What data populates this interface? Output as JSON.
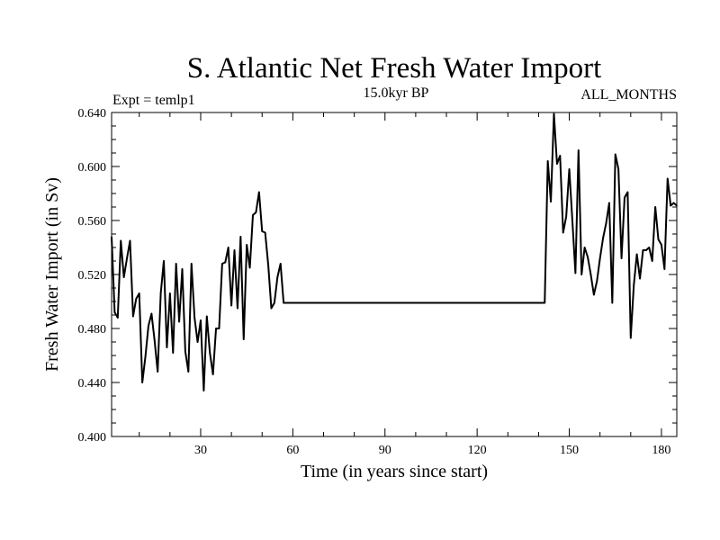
{
  "chart_data": {
    "type": "line",
    "title": "S. Atlantic Net Fresh Water Import",
    "subtitle_left": "Expt = temlp1",
    "subtitle_center": "15.0kyr BP",
    "subtitle_right": "ALL_MONTHS",
    "xlabel": "Time (in years since start)",
    "ylabel": "Fresh Water Import (in Sv)",
    "xlim": [
      1,
      185
    ],
    "ylim": [
      0.4,
      0.64
    ],
    "x_ticks": [
      30,
      60,
      90,
      120,
      150,
      180
    ],
    "y_ticks": [
      "0.400",
      "0.440",
      "0.480",
      "0.520",
      "0.560",
      "0.600",
      "0.640"
    ],
    "grid": false,
    "series": [
      {
        "name": "Net Fresh Water Import",
        "color": "#000000",
        "x": [
          1,
          2,
          3,
          4,
          5,
          6,
          7,
          8,
          9,
          10,
          11,
          12,
          13,
          14,
          15,
          16,
          17,
          18,
          19,
          20,
          21,
          22,
          23,
          24,
          25,
          26,
          27,
          28,
          29,
          30,
          31,
          32,
          33,
          34,
          35,
          36,
          37,
          38,
          39,
          40,
          41,
          42,
          43,
          44,
          45,
          46,
          47,
          48,
          49,
          50,
          51,
          52,
          53,
          54,
          55,
          56,
          57,
          58,
          59,
          60,
          142,
          143,
          144,
          145,
          146,
          147,
          148,
          149,
          150,
          151,
          152,
          153,
          154,
          155,
          156,
          157,
          158,
          159,
          160,
          161,
          162,
          163,
          164,
          165,
          166,
          167,
          168,
          169,
          170,
          171,
          172,
          173,
          174,
          175,
          176,
          177,
          178,
          179,
          180,
          181,
          182,
          183,
          184,
          185
        ],
        "y": [
          0.548,
          0.492,
          0.488,
          0.545,
          0.518,
          0.532,
          0.545,
          0.489,
          0.502,
          0.506,
          0.44,
          0.459,
          0.482,
          0.491,
          0.471,
          0.448,
          0.506,
          0.53,
          0.466,
          0.506,
          0.462,
          0.528,
          0.485,
          0.524,
          0.463,
          0.448,
          0.528,
          0.488,
          0.47,
          0.486,
          0.434,
          0.489,
          0.462,
          0.446,
          0.48,
          0.48,
          0.528,
          0.529,
          0.54,
          0.497,
          0.538,
          0.495,
          0.548,
          0.472,
          0.542,
          0.525,
          0.564,
          0.566,
          0.581,
          0.552,
          0.551,
          0.527,
          0.495,
          0.499,
          0.518,
          0.528,
          0.499,
          0.499,
          0.499,
          0.499,
          0.499,
          0.604,
          0.574,
          0.639,
          0.602,
          0.608,
          0.551,
          0.563,
          0.598,
          0.56,
          0.521,
          0.612,
          0.52,
          0.54,
          0.533,
          0.52,
          0.505,
          0.515,
          0.532,
          0.547,
          0.558,
          0.573,
          0.499,
          0.609,
          0.598,
          0.532,
          0.577,
          0.581,
          0.473,
          0.512,
          0.535,
          0.517,
          0.538,
          0.538,
          0.54,
          0.53,
          0.57,
          0.546,
          0.542,
          0.524,
          0.591,
          0.571,
          0.573,
          0.571
        ]
      }
    ]
  }
}
